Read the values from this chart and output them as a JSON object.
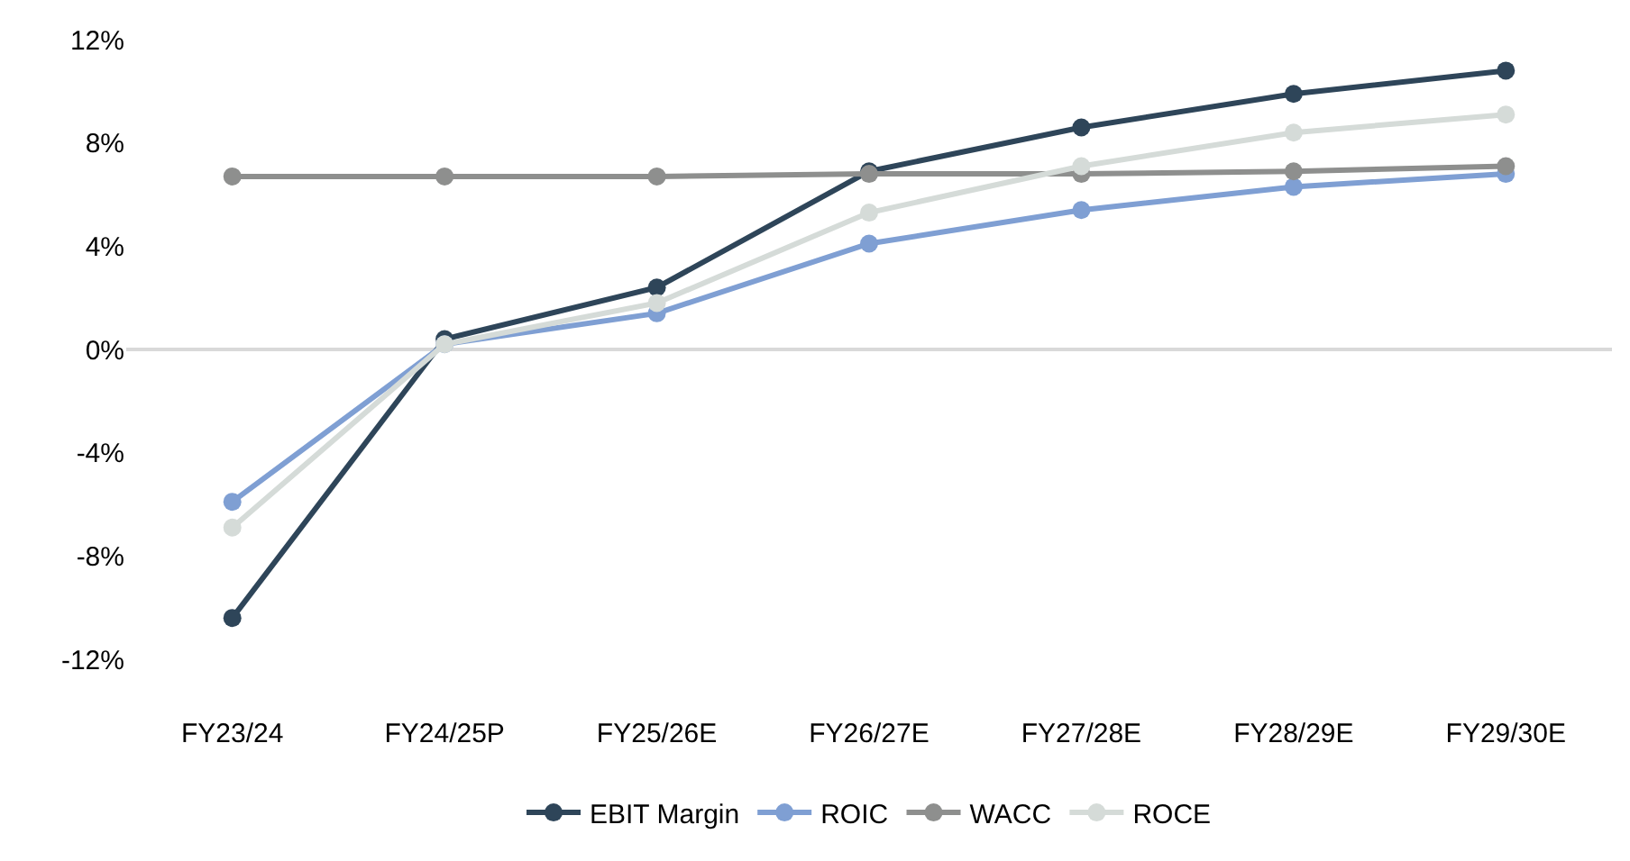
{
  "chart_data": {
    "type": "line",
    "categories": [
      "FY23/24",
      "FY24/25P",
      "FY25/26E",
      "FY26/27E",
      "FY27/28E",
      "FY28/29E",
      "FY29/30E"
    ],
    "series": [
      {
        "name": "EBIT Margin",
        "color": "#2e4559",
        "values": [
          -10.4,
          0.4,
          2.4,
          6.9,
          8.6,
          9.9,
          10.8
        ]
      },
      {
        "name": "ROIC",
        "color": "#7f9fd3",
        "values": [
          -5.9,
          0.2,
          1.4,
          4.1,
          5.4,
          6.3,
          6.8
        ]
      },
      {
        "name": "WACC",
        "color": "#8e8f8e",
        "values": [
          6.7,
          6.7,
          6.7,
          6.8,
          6.8,
          6.9,
          7.1
        ]
      },
      {
        "name": "ROCE",
        "color": "#d5dbd8",
        "values": [
          -6.9,
          0.2,
          1.8,
          5.3,
          7.1,
          8.4,
          9.1
        ]
      }
    ],
    "ylim": [
      -12,
      12
    ],
    "ref_lines": [
      {
        "axis": "y",
        "value": 0,
        "color": "#d9d9d9"
      }
    ],
    "yticks": [
      {
        "value": -12,
        "label": "-12%"
      },
      {
        "value": -8,
        "label": "-8%"
      },
      {
        "value": -4,
        "label": "-4%"
      },
      {
        "value": 0,
        "label": "0%"
      },
      {
        "value": 4,
        "label": "4%"
      },
      {
        "value": 8,
        "label": "8%"
      },
      {
        "value": 12,
        "label": "12%"
      }
    ],
    "grid": false,
    "legend": "bottom",
    "marker": "circle",
    "line_style": "solid"
  }
}
